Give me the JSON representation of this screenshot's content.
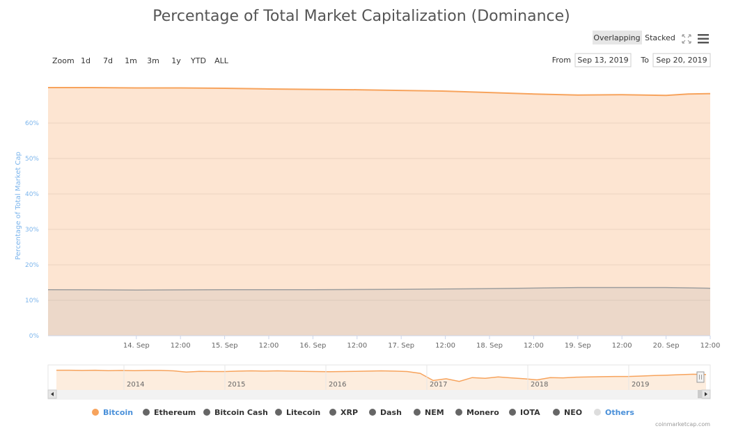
{
  "chart_data": {
    "type": "area",
    "title": "Percentage of Total Market Capitalization (Dominance)",
    "ylabel": "Percentage of Total Market Cap",
    "ylim": [
      0,
      70
    ],
    "yticks": [
      "0%",
      "10%",
      "20%",
      "30%",
      "40%",
      "50%",
      "60%"
    ],
    "x_ticks": [
      "14. Sep",
      "12:00",
      "15. Sep",
      "12:00",
      "16. Sep",
      "12:00",
      "17. Sep",
      "12:00",
      "18. Sep",
      "12:00",
      "19. Sep",
      "12:00",
      "20. Sep",
      "12:00"
    ],
    "x_range": [
      "Sep 13, 2019",
      "Sep 20, 2019"
    ],
    "grid": true,
    "series": [
      {
        "name": "Bitcoin",
        "color": "#f7a35c",
        "x": [
          "2019-09-13 00:00",
          "2019-09-13 12:00",
          "2019-09-14 00:00",
          "2019-09-14 12:00",
          "2019-09-15 00:00",
          "2019-09-15 12:00",
          "2019-09-16 00:00",
          "2019-09-16 12:00",
          "2019-09-17 00:00",
          "2019-09-17 12:00",
          "2019-09-18 00:00",
          "2019-09-18 12:00",
          "2019-09-19 00:00",
          "2019-09-19 12:00",
          "2019-09-20 00:00",
          "2019-09-20 06:00",
          "2019-09-20 12:00"
        ],
        "values": [
          70.0,
          70.0,
          69.9,
          69.9,
          69.8,
          69.6,
          69.5,
          69.4,
          69.2,
          69.0,
          68.6,
          68.2,
          67.9,
          68.0,
          67.8,
          68.2,
          68.3
        ]
      },
      {
        "name": "Ethereum",
        "color": "#9e9e9e",
        "x": [
          "2019-09-13 00:00",
          "2019-09-14 00:00",
          "2019-09-15 00:00",
          "2019-09-16 00:00",
          "2019-09-17 00:00",
          "2019-09-18 00:00",
          "2019-09-19 00:00",
          "2019-09-20 00:00",
          "2019-09-20 12:00"
        ],
        "values": [
          13.0,
          12.9,
          13.0,
          13.0,
          13.1,
          13.3,
          13.6,
          13.6,
          13.4
        ]
      }
    ],
    "legend": {
      "placement": "bottom",
      "items": [
        {
          "name": "Bitcoin",
          "color": "#f7a35c",
          "label_color": "#4a90d9"
        },
        {
          "name": "Ethereum",
          "color": "#666666",
          "label_color": "#333333"
        },
        {
          "name": "Bitcoin Cash",
          "color": "#666666",
          "label_color": "#333333"
        },
        {
          "name": "Litecoin",
          "color": "#666666",
          "label_color": "#333333"
        },
        {
          "name": "XRP",
          "color": "#666666",
          "label_color": "#333333"
        },
        {
          "name": "Dash",
          "color": "#666666",
          "label_color": "#333333"
        },
        {
          "name": "NEM",
          "color": "#666666",
          "label_color": "#333333"
        },
        {
          "name": "Monero",
          "color": "#666666",
          "label_color": "#333333"
        },
        {
          "name": "IOTA",
          "color": "#666666",
          "label_color": "#333333"
        },
        {
          "name": "NEO",
          "color": "#666666",
          "label_color": "#333333"
        },
        {
          "name": "Others",
          "color": "#dddddd",
          "label_color": "#4a90d9"
        }
      ]
    },
    "navigator": {
      "years": [
        "2014",
        "2015",
        "2016",
        "2017",
        "2018",
        "2019"
      ]
    }
  },
  "controls": {
    "zoom_label": "Zoom",
    "zoom_buttons": [
      "1d",
      "7d",
      "1m",
      "3m",
      "1y",
      "YTD",
      "ALL"
    ],
    "from_label": "From",
    "from_value": "Sep 13, 2019",
    "to_label": "To",
    "to_value": "Sep 20, 2019",
    "mode_overlapping": "Overlapping",
    "mode_stacked": "Stacked"
  },
  "credit": "coinmarketcap.com"
}
